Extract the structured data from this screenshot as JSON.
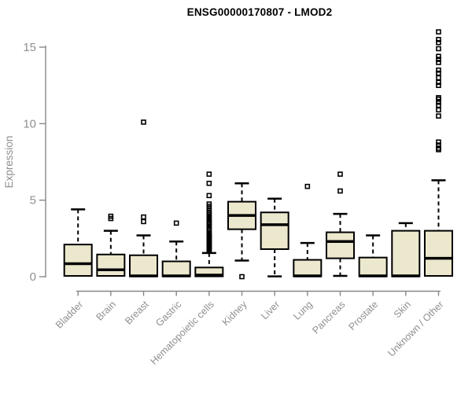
{
  "chart_data": {
    "type": "boxplot",
    "title": "ENSG00000170807 - LMOD2",
    "xlabel": "",
    "ylabel": "Expression",
    "ylim": [
      0,
      16
    ],
    "yticks": [
      0,
      5,
      10,
      15
    ],
    "grid": false,
    "legend": "none",
    "categories": [
      "Bladder",
      "Brain",
      "Breast",
      "Gastric",
      "Hematopoietic cells",
      "Kidney",
      "Liver",
      "Lung",
      "Pancreas",
      "Prostate",
      "Skin",
      "Unknown / Other"
    ],
    "series": [
      {
        "name": "Bladder",
        "q1": 0.05,
        "median": 0.85,
        "q3": 2.1,
        "whisker_low": 0.05,
        "whisker_high": 4.4,
        "outliers": []
      },
      {
        "name": "Brain",
        "q1": 0.05,
        "median": 0.45,
        "q3": 1.45,
        "whisker_low": 0.05,
        "whisker_high": 3.0,
        "outliers": [
          3.8,
          3.95
        ]
      },
      {
        "name": "Breast",
        "q1": 0.02,
        "median": 0.05,
        "q3": 1.4,
        "whisker_low": 0.02,
        "whisker_high": 2.7,
        "outliers": [
          3.6,
          3.9,
          10.1
        ]
      },
      {
        "name": "Gastric",
        "q1": 0.02,
        "median": 0.05,
        "q3": 1.0,
        "whisker_low": 0.02,
        "whisker_high": 2.3,
        "outliers": [
          3.5
        ]
      },
      {
        "name": "Hematopoietic cells",
        "q1": 0.02,
        "median": 0.1,
        "q3": 0.6,
        "whisker_low": 0.02,
        "whisker_high": 1.55,
        "outliers": [
          1.7,
          1.75,
          1.8,
          1.85,
          1.9,
          1.95,
          2.0,
          2.05,
          2.1,
          2.15,
          2.2,
          2.25,
          2.3,
          2.35,
          2.4,
          2.45,
          2.5,
          2.55,
          2.6,
          2.65,
          2.7,
          2.75,
          2.8,
          2.85,
          3.05,
          3.1,
          3.2,
          3.3,
          3.4,
          3.5,
          3.55,
          3.65,
          3.75,
          3.85,
          3.95,
          4.05,
          4.15,
          4.3,
          4.45,
          4.6,
          4.75,
          5.3,
          6.1,
          6.7
        ]
      },
      {
        "name": "Kidney",
        "q1": 3.1,
        "median": 4.0,
        "q3": 4.9,
        "whisker_low": 1.05,
        "whisker_high": 6.1,
        "outliers": [
          0
        ]
      },
      {
        "name": "Liver",
        "q1": 1.8,
        "median": 3.4,
        "q3": 4.2,
        "whisker_low": 0.02,
        "whisker_high": 5.1,
        "outliers": []
      },
      {
        "name": "Lung",
        "q1": 0.02,
        "median": 0.05,
        "q3": 1.1,
        "whisker_low": 0.02,
        "whisker_high": 2.2,
        "outliers": [
          5.9
        ]
      },
      {
        "name": "Pancreas",
        "q1": 1.2,
        "median": 2.3,
        "q3": 2.9,
        "whisker_low": 0.05,
        "whisker_high": 4.1,
        "outliers": [
          5.6,
          6.7
        ]
      },
      {
        "name": "Prostate",
        "q1": 0.02,
        "median": 0.05,
        "q3": 1.25,
        "whisker_low": 0.02,
        "whisker_high": 2.7,
        "outliers": []
      },
      {
        "name": "Skin",
        "q1": 0.02,
        "median": 0.05,
        "q3": 3.0,
        "whisker_low": 0.02,
        "whisker_high": 3.5,
        "outliers": []
      },
      {
        "name": "Unknown / Other",
        "q1": 0.05,
        "median": 1.2,
        "q3": 3.0,
        "whisker_low": 0.05,
        "whisker_high": 6.3,
        "outliers": [
          8.3,
          8.4,
          8.6,
          8.8,
          10.5,
          10.9,
          11.2,
          11.4,
          11.6,
          11.7,
          12.5,
          12.7,
          13.0,
          13.3,
          13.5,
          14.0,
          14.2,
          14.4,
          14.9,
          15.3,
          15.5,
          16.0
        ]
      }
    ],
    "colors": {
      "box_fill": "#ece8cd",
      "box_border": "#000000",
      "median": "#000000",
      "whisker": "#000000",
      "outlier": "#000000",
      "axis_line": "#888888",
      "axis_text": "#8f8f8f",
      "title_text": "#000000"
    }
  }
}
